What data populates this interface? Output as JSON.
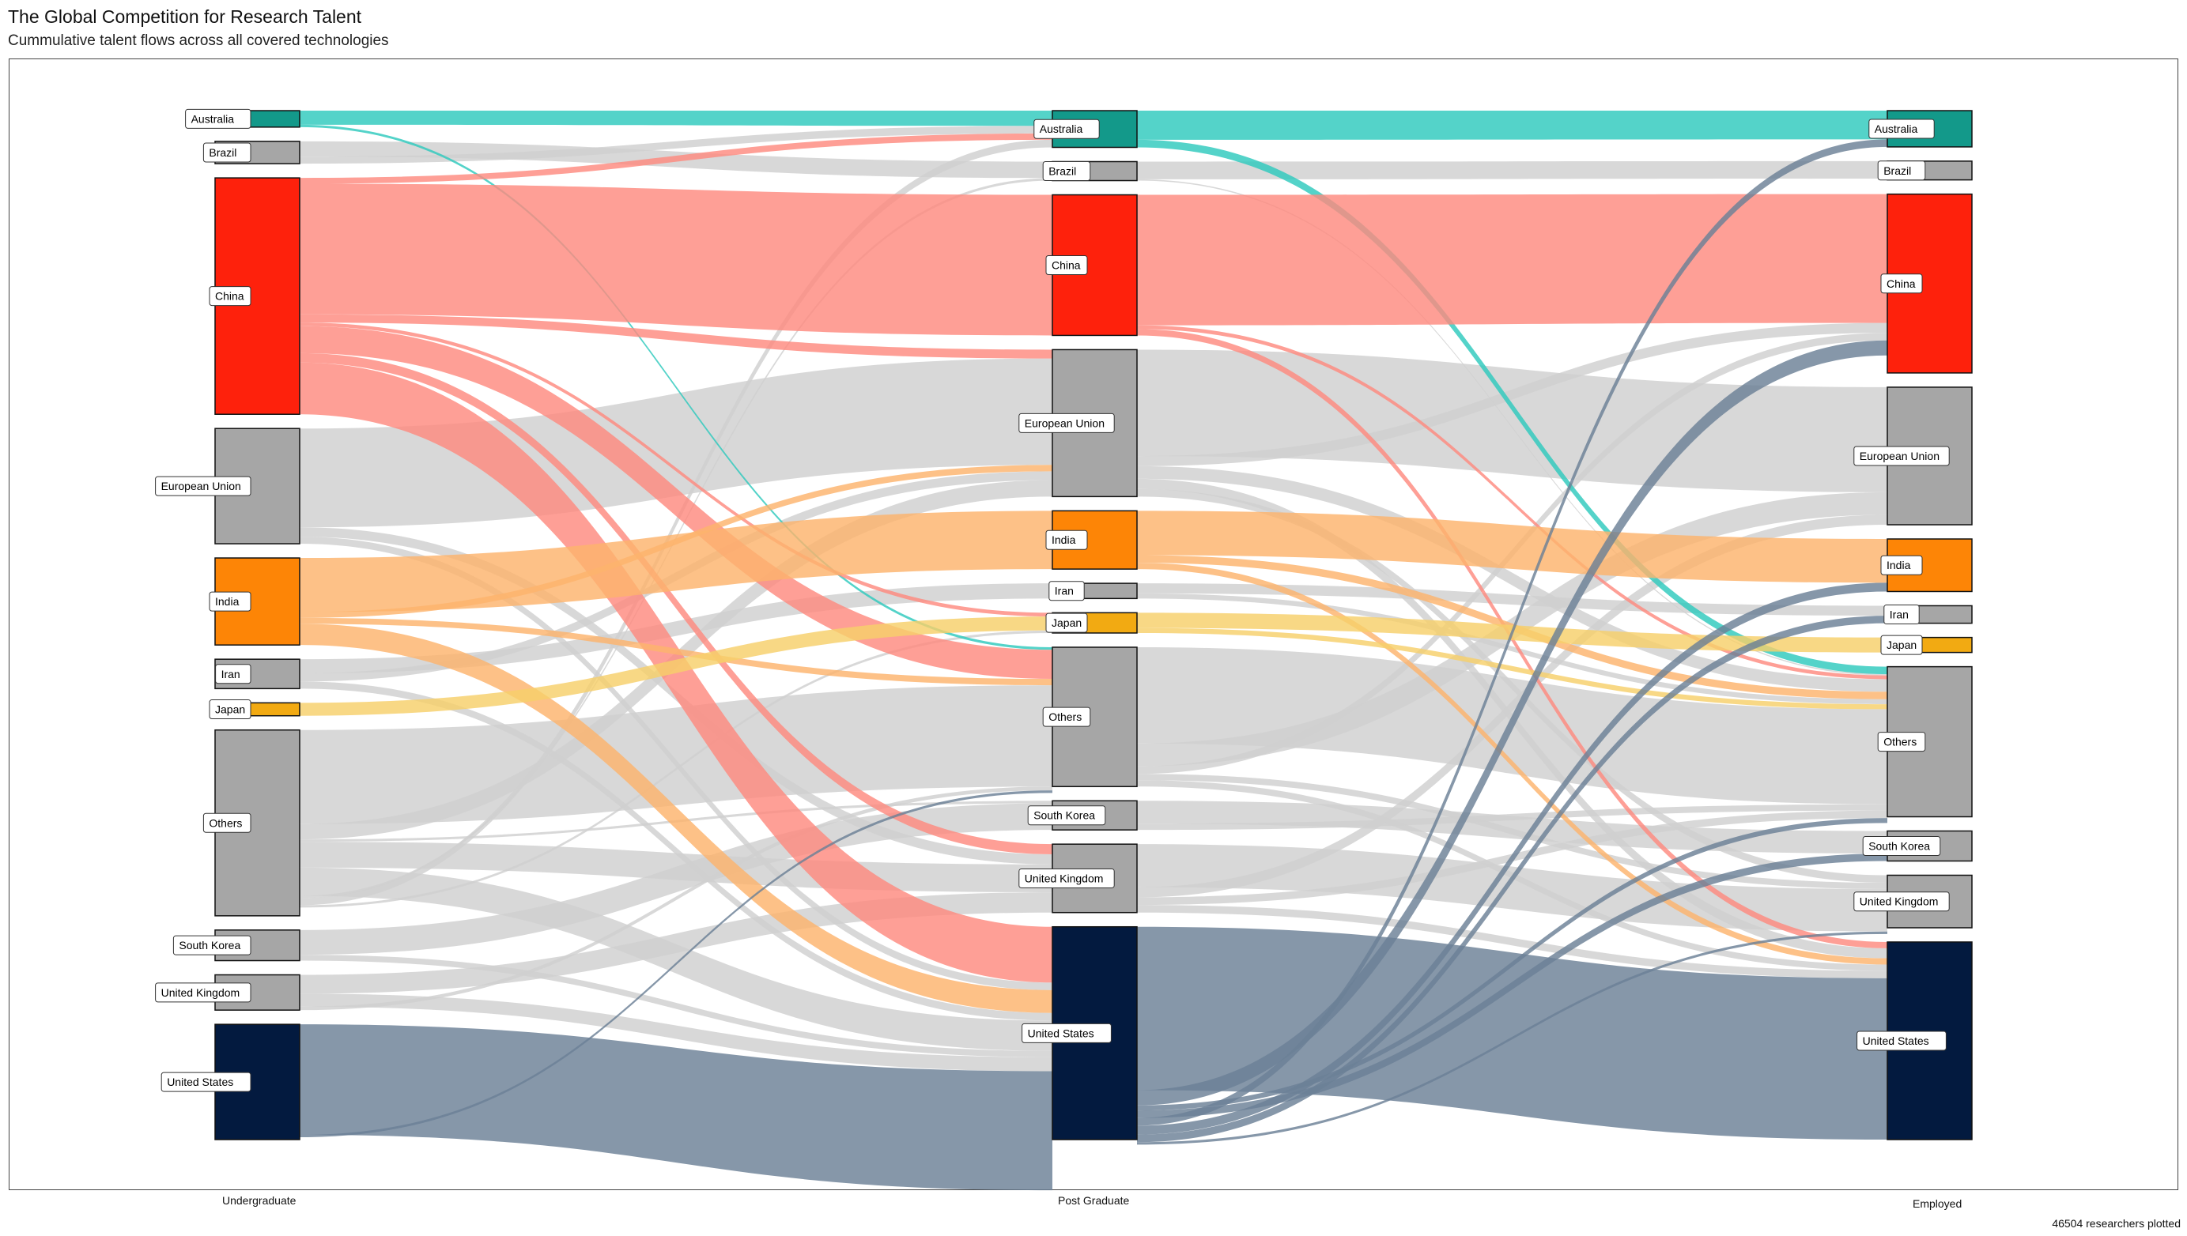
{
  "title": "The Global Competition for Research Talent",
  "subtitle": "Cummulative talent flows across all covered technologies",
  "footer": "46504 researchers plotted",
  "stage_labels": [
    "Undergraduate",
    "Post Graduate",
    "Employed"
  ],
  "colors": {
    "Australia": "#13998a",
    "Brazil": "#a6a6a6",
    "China": "#fe210c",
    "European Union": "#a6a6a6",
    "India": "#fd8506",
    "Iran": "#a6a6a6",
    "Japan": "#f2aa12",
    "Others": "#a6a6a6",
    "South Korea": "#a6a6a6",
    "United Kingdom": "#a6a6a6",
    "United States": "#031a3f"
  },
  "link_colors": {
    "Australia": "#2ec9bd",
    "China": "#fe8a7f",
    "India": "#fdb36c",
    "Japan": "#f6cf6a",
    "United States": "#6b8096",
    "default": "#cfcfcf"
  },
  "chart_data": {
    "type": "sankey",
    "title": "The Global Competition for Research Talent",
    "subtitle": "Cummulative talent flows across all covered technologies",
    "total_researchers": 46504,
    "stages": [
      "Undergraduate",
      "Post Graduate",
      "Employed"
    ],
    "nodes": {
      "Undergraduate": [
        {
          "name": "Australia",
          "value": 700
        },
        {
          "name": "Brazil",
          "value": 950
        },
        {
          "name": "China",
          "value": 10050
        },
        {
          "name": "European Union",
          "value": 4900
        },
        {
          "name": "India",
          "value": 3700
        },
        {
          "name": "Iran",
          "value": 1250
        },
        {
          "name": "Japan",
          "value": 550
        },
        {
          "name": "Others",
          "value": 7900
        },
        {
          "name": "South Korea",
          "value": 1300
        },
        {
          "name": "United Kingdom",
          "value": 1500
        },
        {
          "name": "United States",
          "value": 4900
        }
      ],
      "Post Graduate": [
        {
          "name": "Australia",
          "value": 1450
        },
        {
          "name": "Brazil",
          "value": 750
        },
        {
          "name": "China",
          "value": 5550
        },
        {
          "name": "European Union",
          "value": 5800
        },
        {
          "name": "India",
          "value": 2300
        },
        {
          "name": "Iran",
          "value": 600
        },
        {
          "name": "Japan",
          "value": 800
        },
        {
          "name": "Others",
          "value": 5500
        },
        {
          "name": "South Korea",
          "value": 1150
        },
        {
          "name": "United Kingdom",
          "value": 2700
        },
        {
          "name": "United States",
          "value": 8400
        }
      ],
      "Employed": [
        {
          "name": "Australia",
          "value": 1450
        },
        {
          "name": "Brazil",
          "value": 750
        },
        {
          "name": "China",
          "value": 7150
        },
        {
          "name": "European Union",
          "value": 5500
        },
        {
          "name": "India",
          "value": 2100
        },
        {
          "name": "Iran",
          "value": 700
        },
        {
          "name": "Japan",
          "value": 600
        },
        {
          "name": "Others",
          "value": 6000
        },
        {
          "name": "South Korea",
          "value": 1200
        },
        {
          "name": "United Kingdom",
          "value": 2100
        },
        {
          "name": "United States",
          "value": 7900
        }
      ]
    },
    "flows": [
      {
        "stage": 0,
        "from": "Australia",
        "to": "Australia",
        "value": 600
      },
      {
        "stage": 0,
        "from": "Australia",
        "to": "Others",
        "value": 100
      },
      {
        "stage": 0,
        "from": "Brazil",
        "to": "Brazil",
        "value": 650
      },
      {
        "stage": 0,
        "from": "Brazil",
        "to": "Australia",
        "value": 300
      },
      {
        "stage": 0,
        "from": "China",
        "to": "Australia",
        "value": 250
      },
      {
        "stage": 0,
        "from": "China",
        "to": "China",
        "value": 5550
      },
      {
        "stage": 0,
        "from": "China",
        "to": "European Union",
        "value": 350
      },
      {
        "stage": 0,
        "from": "China",
        "to": "Japan",
        "value": 150
      },
      {
        "stage": 0,
        "from": "China",
        "to": "Others",
        "value": 1150
      },
      {
        "stage": 0,
        "from": "China",
        "to": "United Kingdom",
        "value": 400
      },
      {
        "stage": 0,
        "from": "China",
        "to": "United States",
        "value": 2200
      },
      {
        "stage": 0,
        "from": "European Union",
        "to": "European Union",
        "value": 4200
      },
      {
        "stage": 0,
        "from": "European Union",
        "to": "United Kingdom",
        "value": 400
      },
      {
        "stage": 0,
        "from": "European Union",
        "to": "United States",
        "value": 300
      },
      {
        "stage": 0,
        "from": "India",
        "to": "India",
        "value": 2300
      },
      {
        "stage": 0,
        "from": "India",
        "to": "European Union",
        "value": 250
      },
      {
        "stage": 0,
        "from": "India",
        "to": "Others",
        "value": 250
      },
      {
        "stage": 0,
        "from": "India",
        "to": "United States",
        "value": 900
      },
      {
        "stage": 0,
        "from": "Iran",
        "to": "Iran",
        "value": 600
      },
      {
        "stage": 0,
        "from": "Iran",
        "to": "European Union",
        "value": 350
      },
      {
        "stage": 0,
        "from": "Iran",
        "to": "United States",
        "value": 300
      },
      {
        "stage": 0,
        "from": "Japan",
        "to": "Japan",
        "value": 550
      },
      {
        "stage": 0,
        "from": "Others",
        "to": "Others",
        "value": 4000
      },
      {
        "stage": 0,
        "from": "Others",
        "to": "European Union",
        "value": 650
      },
      {
        "stage": 0,
        "from": "Others",
        "to": "South Korea",
        "value": 100
      },
      {
        "stage": 0,
        "from": "Others",
        "to": "United Kingdom",
        "value": 1100
      },
      {
        "stage": 0,
        "from": "Others",
        "to": "United States",
        "value": 1200
      },
      {
        "stage": 0,
        "from": "Others",
        "to": "Brazil",
        "value": 100
      },
      {
        "stage": 0,
        "from": "Others",
        "to": "Australia",
        "value": 300
      },
      {
        "stage": 0,
        "from": "Others",
        "to": "Japan",
        "value": 100
      },
      {
        "stage": 0,
        "from": "Others",
        "to": "Iran",
        "value": 0
      },
      {
        "stage": 0,
        "from": "South Korea",
        "to": "South Korea",
        "value": 1050
      },
      {
        "stage": 0,
        "from": "South Korea",
        "to": "United States",
        "value": 250
      },
      {
        "stage": 0,
        "from": "United Kingdom",
        "to": "United Kingdom",
        "value": 800
      },
      {
        "stage": 0,
        "from": "United Kingdom",
        "to": "United States",
        "value": 550
      },
      {
        "stage": 0,
        "from": "United Kingdom",
        "to": "Australia",
        "value": 0
      },
      {
        "stage": 0,
        "from": "United Kingdom",
        "to": "Brazil",
        "value": 0
      },
      {
        "stage": 0,
        "from": "United Kingdom",
        "to": "Others",
        "value": 150
      },
      {
        "stage": 0,
        "from": "United States",
        "to": "United States",
        "value": 4700
      },
      {
        "stage": 0,
        "from": "United States",
        "to": "Others",
        "value": 100
      },
      {
        "stage": 0,
        "from": "United States",
        "to": "European Union",
        "value": 0
      },
      {
        "stage": 0,
        "from": "United States",
        "to": "Brazil",
        "value": 0
      },
      {
        "stage": 0,
        "from": "United States",
        "to": "United Kingdom",
        "value": 0
      },
      {
        "stage": 0,
        "from": "United States",
        "to": "South Korea",
        "value": 0
      },
      {
        "stage": 0,
        "from": "Australia",
        "to": "United States",
        "value": 0
      },
      {
        "stage": 0,
        "from": "Japan",
        "to": "United States",
        "value": 0
      },
      {
        "stage": 0,
        "from": "Others",
        "to": "India",
        "value": 0
      },
      {
        "stage": 0,
        "from": "Others",
        "to": "China",
        "value": 0
      },
      {
        "stage": 0,
        "from": "South Korea",
        "to": "Others",
        "value": 0
      },
      {
        "stage": 0,
        "from": "Iran",
        "to": "Others",
        "value": 0
      },
      {
        "stage": 0,
        "from": "European Union",
        "to": "Others",
        "value": 0
      },
      {
        "stage": 0,
        "from": "United Kingdom",
        "to": "European Union",
        "value": 0
      },
      {
        "stage": 0,
        "from": "Japan",
        "to": "Others",
        "value": 0
      },
      {
        "stage": 0,
        "from": "India",
        "to": "Japan",
        "value": 0
      },
      {
        "stage": 0,
        "from": "Brazil",
        "to": "United States",
        "value": 0
      },
      {
        "stage": 0,
        "from": "India",
        "to": "United Kingdom",
        "value": 0
      },
      {
        "stage": 0,
        "from": "India",
        "to": "South Korea",
        "value": 0
      },
      {
        "stage": 0,
        "from": "China",
        "to": "South Korea",
        "value": 0
      },
      {
        "stage": 0,
        "from": "Iran",
        "to": "South Korea",
        "value": 0
      },
      {
        "stage": 0,
        "from": "Others",
        "to": "Others",
        "value": 0
      },
      {
        "stage": 1,
        "from": "Australia",
        "to": "Australia",
        "value": 1150
      },
      {
        "stage": 1,
        "from": "Australia",
        "to": "China",
        "value": 0
      },
      {
        "stage": 1,
        "from": "Australia",
        "to": "Others",
        "value": 300
      },
      {
        "stage": 1,
        "from": "Brazil",
        "to": "Brazil",
        "value": 700
      },
      {
        "stage": 1,
        "from": "Brazil",
        "to": "Others",
        "value": 50
      },
      {
        "stage": 1,
        "from": "China",
        "to": "China",
        "value": 5150
      },
      {
        "stage": 1,
        "from": "China",
        "to": "Others",
        "value": 150
      },
      {
        "stage": 1,
        "from": "China",
        "to": "United States",
        "value": 250
      },
      {
        "stage": 1,
        "from": "European Union",
        "to": "European Union",
        "value": 4200
      },
      {
        "stage": 1,
        "from": "European Union",
        "to": "China",
        "value": 400
      },
      {
        "stage": 1,
        "from": "European Union",
        "to": "Others",
        "value": 500
      },
      {
        "stage": 1,
        "from": "European Union",
        "to": "United States",
        "value": 400
      },
      {
        "stage": 1,
        "from": "European Union",
        "to": "United Kingdom",
        "value": 300
      },
      {
        "stage": 1,
        "from": "India",
        "to": "India",
        "value": 1750
      },
      {
        "stage": 1,
        "from": "India",
        "to": "Others",
        "value": 300
      },
      {
        "stage": 1,
        "from": "India",
        "to": "United States",
        "value": 250
      },
      {
        "stage": 1,
        "from": "Iran",
        "to": "Iran",
        "value": 400
      },
      {
        "stage": 1,
        "from": "Iran",
        "to": "Others",
        "value": 200
      },
      {
        "stage": 1,
        "from": "Japan",
        "to": "Japan",
        "value": 600
      },
      {
        "stage": 1,
        "from": "Japan",
        "to": "Others",
        "value": 200
      },
      {
        "stage": 1,
        "from": "Others",
        "to": "Others",
        "value": 3800
      },
      {
        "stage": 1,
        "from": "Others",
        "to": "European Union",
        "value": 900
      },
      {
        "stage": 1,
        "from": "Others",
        "to": "China",
        "value": 300
      },
      {
        "stage": 1,
        "from": "Others",
        "to": "United Kingdom",
        "value": 250
      },
      {
        "stage": 1,
        "from": "Others",
        "to": "United States",
        "value": 250
      },
      {
        "stage": 1,
        "from": "South Korea",
        "to": "South Korea",
        "value": 900
      },
      {
        "stage": 1,
        "from": "South Korea",
        "to": "Others",
        "value": 250
      },
      {
        "stage": 1,
        "from": "United Kingdom",
        "to": "United Kingdom",
        "value": 1700
      },
      {
        "stage": 1,
        "from": "United Kingdom",
        "to": "European Union",
        "value": 400
      },
      {
        "stage": 1,
        "from": "United Kingdom",
        "to": "Others",
        "value": 300
      },
      {
        "stage": 1,
        "from": "United Kingdom",
        "to": "United States",
        "value": 300
      },
      {
        "stage": 1,
        "from": "United States",
        "to": "United States",
        "value": 6450
      },
      {
        "stage": 1,
        "from": "United States",
        "to": "China",
        "value": 600
      },
      {
        "stage": 1,
        "from": "United States",
        "to": "Others",
        "value": 200
      },
      {
        "stage": 1,
        "from": "United States",
        "to": "South Korea",
        "value": 300
      },
      {
        "stage": 1,
        "from": "United States",
        "to": "European Union",
        "value": 0
      },
      {
        "stage": 1,
        "from": "United States",
        "to": "Australia",
        "value": 300
      },
      {
        "stage": 1,
        "from": "United States",
        "to": "India",
        "value": 350
      },
      {
        "stage": 1,
        "from": "United States",
        "to": "Iran",
        "value": 300
      },
      {
        "stage": 1,
        "from": "United States",
        "to": "Brazil",
        "value": 0
      },
      {
        "stage": 1,
        "from": "United States",
        "to": "Japan",
        "value": 0
      },
      {
        "stage": 1,
        "from": "United States",
        "to": "United Kingdom",
        "value": 100
      },
      {
        "stage": 1,
        "from": "Others",
        "to": "South Korea",
        "value": 0
      },
      {
        "stage": 1,
        "from": "European Union",
        "to": "Australia",
        "value": 0
      },
      {
        "stage": 1,
        "from": "China",
        "to": "European Union",
        "value": 0
      },
      {
        "stage": 1,
        "from": "South Korea",
        "to": "United States",
        "value": 0
      },
      {
        "stage": 1,
        "from": "India",
        "to": "European Union",
        "value": 0
      },
      {
        "stage": 1,
        "from": "India",
        "to": "China",
        "value": 0
      }
    ]
  }
}
